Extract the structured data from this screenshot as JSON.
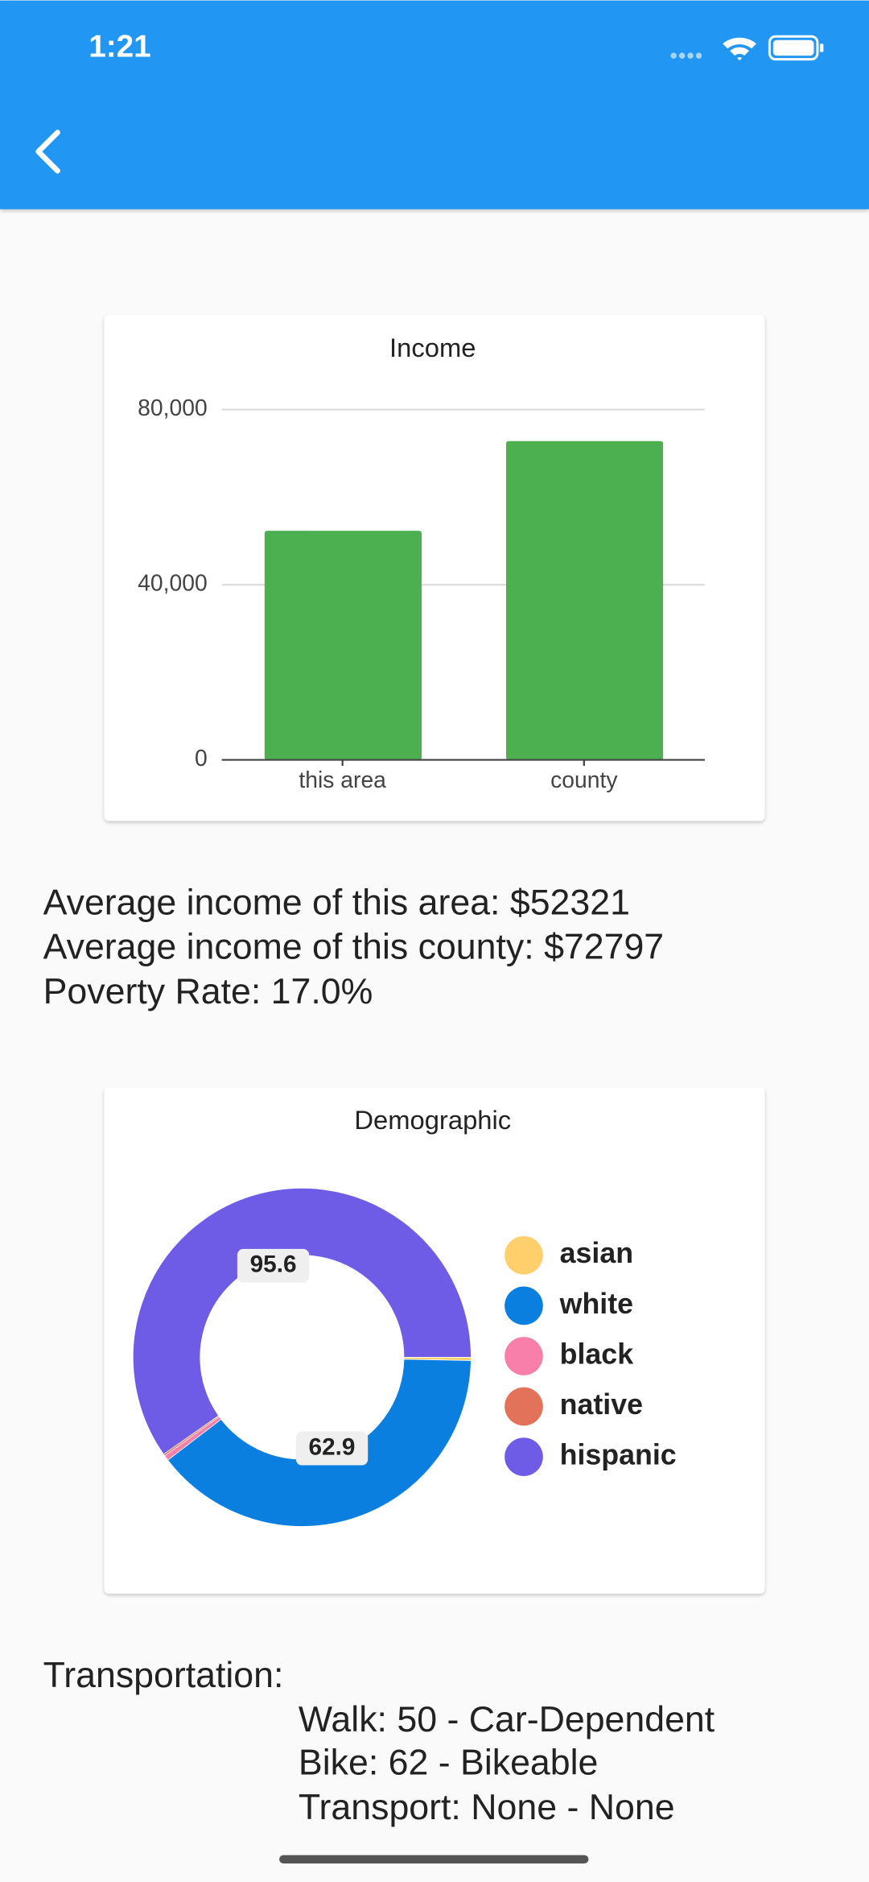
{
  "status_bar": {
    "time": "1:21"
  },
  "chart_data": [
    {
      "type": "bar",
      "title": "Income",
      "categories": [
        "this area",
        "county"
      ],
      "values": [
        52321,
        72797
      ],
      "color": "#4caf50",
      "ylim": [
        0,
        80000
      ],
      "yticks": [
        0,
        {
          "value": 40000,
          "label": "40,000"
        },
        {
          "value": 80000,
          "label": "80,000"
        }
      ],
      "grid": true
    },
    {
      "type": "pie",
      "title": "Demographic",
      "categories": [
        "asian",
        "white",
        "black",
        "native",
        "hispanic"
      ],
      "values": [
        0.5,
        62.9,
        0.8,
        0.3,
        95.6
      ],
      "colors": [
        "#ffcf6b",
        "#0b7fdf",
        "#f77faa",
        "#e2735a",
        "#6e5ce6"
      ],
      "legend": "right"
    }
  ],
  "income_info": [
    "Average income of this area: $52321",
    "Average income of this county: $72797",
    "Poverty Rate: 17.0%"
  ],
  "transportation": {
    "title": "Transportation:",
    "lines": [
      "Walk: 50 - Car-Dependent",
      "Bike: 62 - Bikeable",
      "Transport: None - None"
    ]
  }
}
